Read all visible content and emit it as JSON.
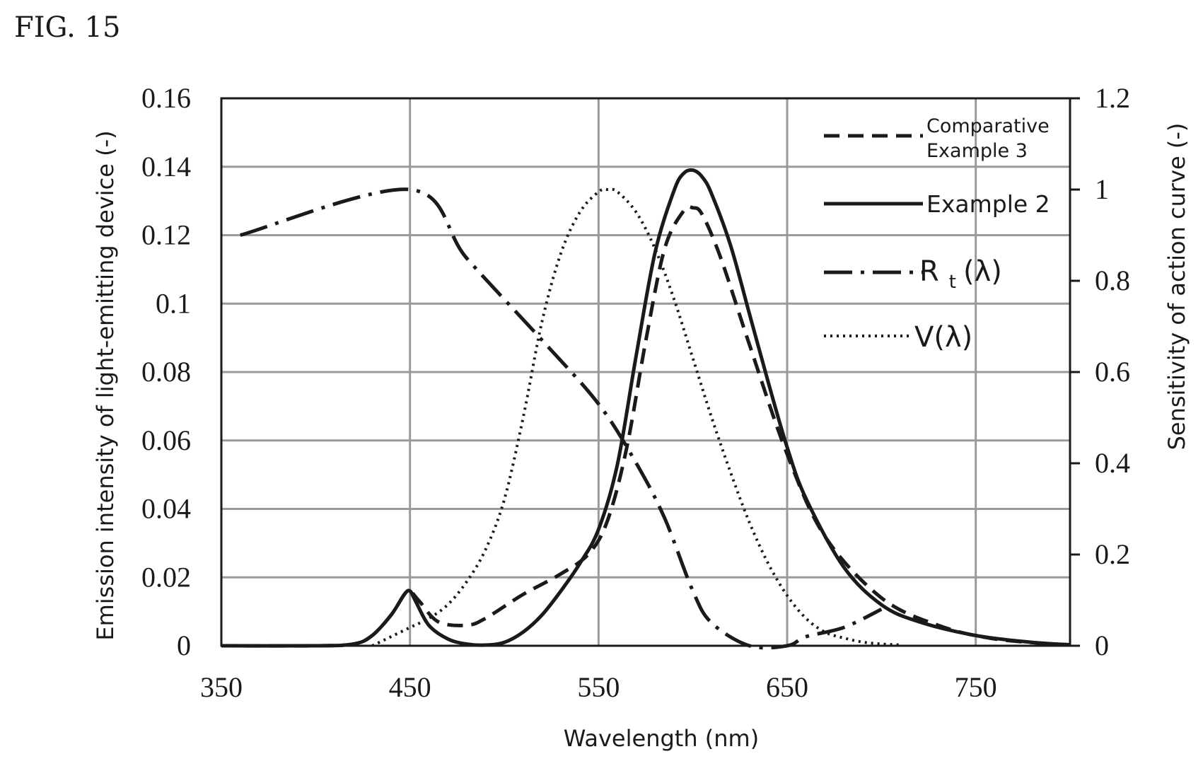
{
  "figure_label": "FIG. 15",
  "chart_data": {
    "type": "line",
    "xlabel": "Wavelength (nm)",
    "ylabel_left": "Emission intensity of light-emitting device (-)",
    "ylabel_right": "Sensitivity of action curve (-)",
    "xlim": [
      350,
      800
    ],
    "ylim_left": [
      0,
      0.16
    ],
    "ylim_right": [
      0,
      1.2
    ],
    "x_ticks": [
      350,
      450,
      550,
      650,
      750
    ],
    "x_tick_labels": [
      "350",
      "450",
      "550",
      "650",
      "750"
    ],
    "y_left_ticks": [
      0,
      0.02,
      0.04,
      0.06,
      0.08,
      0.1,
      0.12,
      0.14,
      0.16
    ],
    "y_left_tick_labels": [
      "0",
      "0.02",
      "0.04",
      "0.06",
      "0.08",
      "0.1",
      "0.12",
      "0.14",
      "0.16"
    ],
    "y_right_ticks": [
      0,
      0.2,
      0.4,
      0.6,
      0.8,
      1,
      1.2
    ],
    "y_right_tick_labels": [
      "0",
      "0.2",
      "0.4",
      "0.6",
      "0.8",
      "1",
      "1.2"
    ],
    "grid": true,
    "legend_position": "top-right",
    "series": [
      {
        "name": "Comparative Example 3",
        "legend_lines": [
          "Comparative",
          "Example 3"
        ],
        "axis": "left",
        "style": "dashed",
        "x": [
          350,
          400,
          420,
          430,
          440,
          447,
          450,
          455,
          465,
          480,
          490,
          510,
          530,
          545,
          555,
          565,
          575,
          585,
          595,
          600,
          605,
          615,
          630,
          650,
          670,
          700,
          730,
          760,
          800
        ],
        "y": [
          0,
          0,
          0.0005,
          0.003,
          0.009,
          0.015,
          0.016,
          0.013,
          0.007,
          0.006,
          0.008,
          0.015,
          0.021,
          0.027,
          0.037,
          0.058,
          0.089,
          0.116,
          0.127,
          0.128,
          0.126,
          0.113,
          0.088,
          0.056,
          0.032,
          0.014,
          0.006,
          0.002,
          0.0002
        ]
      },
      {
        "name": "Example 2",
        "axis": "left",
        "style": "solid",
        "x": [
          350,
          400,
          420,
          430,
          440,
          447,
          450,
          453,
          460,
          470,
          480,
          490,
          500,
          510,
          520,
          530,
          540,
          550,
          560,
          570,
          580,
          590,
          595,
          600,
          605,
          610,
          620,
          630,
          640,
          650,
          660,
          680,
          700,
          720,
          750,
          780,
          800
        ],
        "y": [
          0,
          0,
          0.0005,
          0.003,
          0.009,
          0.015,
          0.016,
          0.013,
          0.006,
          0.002,
          0.0005,
          0.0002,
          0.001,
          0.004,
          0.009,
          0.016,
          0.024,
          0.034,
          0.053,
          0.085,
          0.115,
          0.133,
          0.138,
          0.139,
          0.137,
          0.132,
          0.117,
          0.097,
          0.077,
          0.058,
          0.043,
          0.023,
          0.012,
          0.007,
          0.003,
          0.001,
          0.0003
        ]
      },
      {
        "name": "R t(λ)",
        "legend_main": "R",
        "legend_sub": "t",
        "legend_suffix": "(λ)",
        "axis": "right",
        "style": "dash-dot",
        "x": [
          360,
          450,
          480,
          520,
          550,
          570,
          585,
          600,
          610,
          630,
          650,
          660,
          680,
          700
        ],
        "y": [
          0.9,
          1.0,
          0.85,
          0.67,
          0.53,
          0.4,
          0.28,
          0.12,
          0.05,
          0.0,
          0.0,
          0.02,
          0.04,
          0.08
        ]
      },
      {
        "name": "V(λ)",
        "axis": "right",
        "style": "dotted",
        "x": [
          430,
          450,
          460,
          470,
          480,
          490,
          500,
          510,
          520,
          530,
          540,
          550,
          555,
          560,
          570,
          580,
          590,
          600,
          610,
          620,
          630,
          640,
          650,
          660,
          670,
          680,
          690,
          700,
          710
        ],
        "y": [
          0.0,
          0.04,
          0.06,
          0.09,
          0.14,
          0.21,
          0.32,
          0.5,
          0.71,
          0.86,
          0.95,
          0.995,
          1.0,
          0.995,
          0.95,
          0.87,
          0.76,
          0.63,
          0.5,
          0.38,
          0.27,
          0.18,
          0.11,
          0.06,
          0.03,
          0.017,
          0.008,
          0.004,
          0.002
        ]
      }
    ]
  }
}
